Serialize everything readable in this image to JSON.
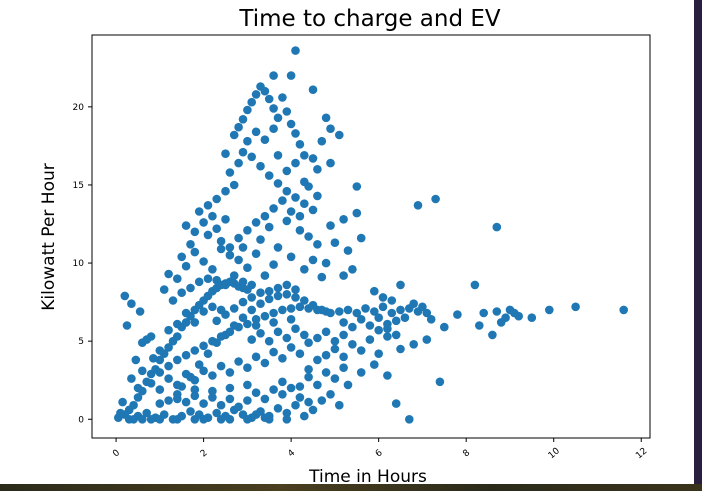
{
  "chart_data": {
    "type": "scatter",
    "title": "Time to charge and EV",
    "xlabel": "Time in Hours",
    "ylabel": "Kilowatt Per Hour",
    "xlim": [
      -0.55,
      12.2
    ],
    "ylim": [
      -1.2,
      24.6
    ],
    "xticks": [
      0,
      2,
      4,
      6,
      8,
      10,
      12
    ],
    "yticks": [
      0,
      5,
      10,
      15,
      20
    ],
    "grid": false,
    "color": "#1f77b4",
    "points": [
      [
        0.05,
        0.1
      ],
      [
        0.2,
        0.3
      ],
      [
        0.3,
        0.6
      ],
      [
        0.4,
        0.9
      ],
      [
        0.5,
        1.4
      ],
      [
        0.6,
        1.8
      ],
      [
        0.7,
        2.4
      ],
      [
        0.8,
        2.9
      ],
      [
        0.9,
        3.2
      ],
      [
        1.0,
        3.8
      ],
      [
        1.1,
        4.2
      ],
      [
        1.2,
        4.6
      ],
      [
        1.3,
        5.0
      ],
      [
        1.4,
        5.3
      ],
      [
        1.5,
        5.9
      ],
      [
        1.6,
        6.2
      ],
      [
        1.7,
        6.6
      ],
      [
        1.8,
        7.0
      ],
      [
        1.9,
        7.3
      ],
      [
        2.0,
        7.6
      ],
      [
        2.1,
        7.9
      ],
      [
        2.2,
        8.2
      ],
      [
        2.3,
        8.4
      ],
      [
        2.4,
        8.6
      ],
      [
        2.5,
        8.7
      ],
      [
        2.6,
        8.8
      ],
      [
        2.7,
        8.7
      ],
      [
        2.8,
        8.5
      ],
      [
        2.9,
        8.4
      ],
      [
        3.0,
        8.3
      ],
      [
        0.3,
        0.0
      ],
      [
        0.5,
        0.2
      ],
      [
        0.7,
        0.4
      ],
      [
        0.9,
        0.1
      ],
      [
        1.1,
        0.3
      ],
      [
        1.3,
        0.0
      ],
      [
        1.5,
        0.2
      ],
      [
        1.7,
        0.5
      ],
      [
        1.9,
        0.3
      ],
      [
        2.1,
        0.1
      ],
      [
        2.3,
        0.4
      ],
      [
        2.5,
        0.2
      ],
      [
        2.7,
        0.6
      ],
      [
        2.9,
        0.3
      ],
      [
        3.1,
        0.1
      ],
      [
        3.3,
        0.5
      ],
      [
        3.5,
        0.2
      ],
      [
        3.7,
        0.7
      ],
      [
        3.9,
        0.4
      ],
      [
        4.1,
        0.9
      ],
      [
        0.5,
        2.0
      ],
      [
        0.8,
        2.3
      ],
      [
        1.0,
        1.9
      ],
      [
        1.2,
        2.6
      ],
      [
        1.4,
        2.2
      ],
      [
        1.6,
        2.9
      ],
      [
        1.8,
        2.5
      ],
      [
        2.0,
        3.1
      ],
      [
        2.2,
        2.8
      ],
      [
        2.4,
        3.4
      ],
      [
        2.6,
        3.0
      ],
      [
        2.8,
        3.7
      ],
      [
        3.0,
        3.3
      ],
      [
        3.2,
        4.0
      ],
      [
        3.4,
        3.6
      ],
      [
        3.6,
        4.3
      ],
      [
        3.8,
        3.9
      ],
      [
        4.0,
        4.6
      ],
      [
        4.2,
        4.2
      ],
      [
        4.4,
        4.9
      ],
      [
        1.0,
        3.0
      ],
      [
        1.2,
        3.4
      ],
      [
        1.4,
        3.8
      ],
      [
        1.6,
        4.1
      ],
      [
        1.8,
        4.4
      ],
      [
        2.0,
        4.7
      ],
      [
        2.2,
        5.0
      ],
      [
        2.4,
        5.3
      ],
      [
        2.6,
        5.6
      ],
      [
        2.8,
        5.9
      ],
      [
        3.0,
        6.1
      ],
      [
        3.2,
        6.4
      ],
      [
        3.4,
        6.6
      ],
      [
        3.6,
        6.8
      ],
      [
        3.8,
        7.0
      ],
      [
        4.0,
        7.1
      ],
      [
        4.2,
        7.2
      ],
      [
        4.4,
        7.1
      ],
      [
        4.6,
        7.0
      ],
      [
        4.8,
        6.9
      ],
      [
        1.5,
        2.1
      ],
      [
        1.7,
        2.7
      ],
      [
        1.9,
        3.5
      ],
      [
        2.1,
        4.2
      ],
      [
        2.3,
        4.9
      ],
      [
        2.5,
        5.4
      ],
      [
        2.7,
        6.0
      ],
      [
        2.9,
        6.5
      ],
      [
        3.1,
        7.0
      ],
      [
        3.3,
        7.4
      ],
      [
        3.5,
        7.7
      ],
      [
        3.7,
        7.9
      ],
      [
        3.9,
        8.0
      ],
      [
        4.1,
        7.8
      ],
      [
        4.3,
        7.6
      ],
      [
        4.5,
        7.3
      ],
      [
        4.7,
        7.0
      ],
      [
        4.9,
        6.8
      ],
      [
        5.1,
        6.9
      ],
      [
        5.3,
        7.0
      ],
      [
        5.5,
        6.8
      ],
      [
        5.7,
        7.1
      ],
      [
        5.9,
        6.9
      ],
      [
        6.1,
        7.2
      ],
      [
        6.3,
        6.8
      ],
      [
        6.5,
        7.0
      ],
      [
        6.7,
        7.1
      ],
      [
        6.9,
        6.9
      ],
      [
        7.1,
        6.8
      ],
      [
        5.2,
        6.2
      ],
      [
        5.4,
        5.9
      ],
      [
        5.6,
        6.4
      ],
      [
        5.8,
        6.0
      ],
      [
        6.0,
        6.5
      ],
      [
        6.2,
        5.8
      ],
      [
        6.4,
        6.3
      ],
      [
        4.6,
        5.2
      ],
      [
        4.8,
        5.6
      ],
      [
        5.0,
        5.0
      ],
      [
        5.2,
        5.4
      ],
      [
        4.4,
        3.2
      ],
      [
        4.6,
        3.8
      ],
      [
        4.8,
        4.1
      ],
      [
        5.0,
        4.5
      ],
      [
        5.2,
        4.0
      ],
      [
        5.4,
        4.8
      ],
      [
        5.6,
        4.4
      ],
      [
        5.8,
        5.1
      ],
      [
        6.0,
        4.2
      ],
      [
        6.2,
        5.3
      ],
      [
        4.2,
        2.1
      ],
      [
        4.4,
        2.7
      ],
      [
        4.6,
        2.2
      ],
      [
        4.8,
        3.0
      ],
      [
        5.0,
        2.6
      ],
      [
        5.2,
        3.3
      ],
      [
        3.8,
        1.6
      ],
      [
        4.0,
        2.0
      ],
      [
        4.2,
        1.4
      ],
      [
        4.4,
        1.1
      ],
      [
        0.6,
        4.9
      ],
      [
        0.8,
        5.3
      ],
      [
        1.0,
        4.4
      ],
      [
        1.2,
        5.7
      ],
      [
        1.4,
        6.1
      ],
      [
        1.6,
        6.8
      ],
      [
        1.8,
        6.2
      ],
      [
        2.0,
        6.9
      ],
      [
        2.2,
        7.2
      ],
      [
        2.4,
        7.0
      ],
      [
        1.3,
        7.6
      ],
      [
        1.5,
        8.1
      ],
      [
        1.7,
        8.4
      ],
      [
        1.9,
        8.8
      ],
      [
        2.1,
        9.0
      ],
      [
        2.3,
        8.9
      ],
      [
        2.5,
        8.6
      ],
      [
        2.7,
        9.2
      ],
      [
        2.9,
        8.8
      ],
      [
        3.1,
        8.6
      ],
      [
        0.2,
        7.9
      ],
      [
        0.35,
        7.4
      ],
      [
        0.55,
        6.9
      ],
      [
        0.25,
        6.0
      ],
      [
        0.7,
        5.1
      ],
      [
        0.45,
        3.8
      ],
      [
        0.15,
        1.1
      ],
      [
        0.35,
        2.6
      ],
      [
        0.6,
        3.1
      ],
      [
        0.85,
        3.9
      ],
      [
        1.2,
        9.3
      ],
      [
        1.5,
        10.4
      ],
      [
        1.7,
        11.2
      ],
      [
        1.8,
        12.0
      ],
      [
        2.0,
        12.6
      ],
      [
        2.1,
        11.8
      ],
      [
        2.2,
        13.0
      ],
      [
        2.3,
        12.2
      ],
      [
        2.4,
        11.4
      ],
      [
        2.5,
        12.8
      ],
      [
        1.6,
        12.4
      ],
      [
        1.9,
        13.3
      ],
      [
        2.1,
        13.7
      ],
      [
        2.3,
        14.1
      ],
      [
        2.5,
        14.6
      ],
      [
        2.7,
        15.0
      ],
      [
        2.6,
        15.8
      ],
      [
        2.8,
        16.4
      ],
      [
        2.9,
        17.1
      ],
      [
        3.0,
        17.8
      ],
      [
        2.5,
        17.0
      ],
      [
        2.7,
        18.2
      ],
      [
        2.8,
        18.7
      ],
      [
        2.9,
        19.2
      ],
      [
        3.0,
        19.8
      ],
      [
        3.1,
        20.3
      ],
      [
        3.2,
        20.8
      ],
      [
        3.3,
        21.3
      ],
      [
        3.4,
        21.0
      ],
      [
        3.5,
        20.5
      ],
      [
        3.6,
        19.9
      ],
      [
        3.7,
        19.3
      ],
      [
        3.8,
        20.6
      ],
      [
        3.9,
        19.7
      ],
      [
        4.0,
        18.9
      ],
      [
        4.1,
        18.3
      ],
      [
        4.2,
        17.6
      ],
      [
        3.6,
        18.6
      ],
      [
        3.4,
        17.9
      ],
      [
        3.2,
        18.4
      ],
      [
        3.1,
        16.8
      ],
      [
        3.3,
        16.2
      ],
      [
        3.5,
        15.6
      ],
      [
        3.7,
        15.1
      ],
      [
        3.9,
        14.6
      ],
      [
        4.1,
        14.2
      ],
      [
        4.3,
        13.8
      ],
      [
        4.5,
        13.4
      ],
      [
        3.8,
        14.0
      ],
      [
        3.6,
        13.5
      ],
      [
        3.4,
        13.0
      ],
      [
        3.2,
        12.6
      ],
      [
        3.0,
        12.1
      ],
      [
        2.8,
        11.6
      ],
      [
        2.6,
        11.0
      ],
      [
        3.5,
        12.3
      ],
      [
        3.9,
        12.7
      ],
      [
        4.2,
        12.1
      ],
      [
        4.4,
        11.7
      ],
      [
        4.6,
        11.2
      ],
      [
        4.0,
        13.3
      ],
      [
        4.3,
        15.2
      ],
      [
        4.5,
        16.7
      ],
      [
        4.7,
        17.8
      ],
      [
        4.9,
        18.6
      ],
      [
        4.6,
        16.0
      ],
      [
        4.3,
        16.9
      ],
      [
        4.1,
        16.4
      ],
      [
        3.9,
        15.9
      ],
      [
        3.7,
        16.9
      ],
      [
        3.6,
        22.0
      ],
      [
        4.0,
        22.0
      ],
      [
        4.1,
        23.6
      ],
      [
        4.5,
        21.1
      ],
      [
        4.8,
        19.3
      ],
      [
        5.1,
        18.2
      ],
      [
        4.9,
        16.4
      ],
      [
        4.6,
        14.3
      ],
      [
        4.4,
        14.9
      ],
      [
        4.2,
        13.0
      ],
      [
        1.8,
        10.7
      ],
      [
        2.0,
        10.1
      ],
      [
        2.2,
        9.6
      ],
      [
        2.4,
        10.9
      ],
      [
        2.6,
        10.5
      ],
      [
        2.8,
        10.2
      ],
      [
        3.0,
        9.7
      ],
      [
        3.2,
        10.6
      ],
      [
        3.4,
        9.2
      ],
      [
        3.6,
        9.9
      ],
      [
        1.4,
        9.0
      ],
      [
        1.6,
        9.8
      ],
      [
        1.1,
        8.3
      ],
      [
        2.9,
        11.0
      ],
      [
        3.3,
        11.5
      ],
      [
        3.7,
        11.0
      ],
      [
        4.0,
        10.4
      ],
      [
        4.3,
        9.6
      ],
      [
        4.5,
        10.2
      ],
      [
        4.7,
        9.1
      ],
      [
        5.5,
        14.9
      ],
      [
        5.5,
        13.2
      ],
      [
        5.6,
        11.6
      ],
      [
        5.2,
        12.8
      ],
      [
        5.3,
        10.8
      ],
      [
        5.0,
        11.3
      ],
      [
        4.9,
        12.4
      ],
      [
        4.8,
        10.0
      ],
      [
        5.4,
        9.6
      ],
      [
        5.2,
        9.2
      ],
      [
        5.9,
        8.2
      ],
      [
        6.1,
        7.8
      ],
      [
        6.5,
        8.6
      ],
      [
        6.3,
        7.6
      ],
      [
        6.8,
        7.4
      ],
      [
        6.6,
        6.5
      ],
      [
        7.0,
        7.2
      ],
      [
        6.2,
        6.1
      ],
      [
        6.0,
        5.7
      ],
      [
        6.4,
        5.4
      ],
      [
        6.9,
        13.7
      ],
      [
        7.3,
        14.1
      ],
      [
        8.7,
        12.3
      ],
      [
        7.8,
        6.7
      ],
      [
        8.2,
        8.6
      ],
      [
        8.3,
        6.0
      ],
      [
        8.4,
        6.8
      ],
      [
        8.6,
        5.4
      ],
      [
        8.7,
        6.9
      ],
      [
        8.9,
        6.5
      ],
      [
        9.0,
        7.0
      ],
      [
        9.2,
        6.6
      ],
      [
        9.5,
        6.5
      ],
      [
        9.9,
        7.0
      ],
      [
        10.5,
        7.2
      ],
      [
        11.6,
        7.0
      ],
      [
        8.8,
        6.2
      ],
      [
        9.1,
        6.8
      ],
      [
        7.2,
        6.4
      ],
      [
        7.5,
        5.9
      ],
      [
        6.8,
        4.8
      ],
      [
        7.1,
        5.1
      ],
      [
        6.5,
        4.5
      ],
      [
        7.4,
        2.4
      ],
      [
        6.4,
        1.0
      ],
      [
        6.7,
        0.0
      ],
      [
        6.2,
        2.8
      ],
      [
        5.9,
        3.5
      ],
      [
        5.6,
        3.0
      ],
      [
        5.3,
        2.2
      ],
      [
        4.9,
        1.6
      ],
      [
        5.1,
        0.9
      ],
      [
        4.7,
        1.2
      ],
      [
        4.5,
        0.6
      ],
      [
        4.3,
        0.2
      ],
      [
        3.9,
        0.0
      ],
      [
        3.5,
        0.0
      ],
      [
        3.2,
        0.3
      ],
      [
        2.4,
        0.0
      ],
      [
        1.8,
        0.0
      ],
      [
        1.2,
        1.2
      ],
      [
        1.4,
        1.6
      ],
      [
        1.6,
        1.1
      ],
      [
        1.8,
        1.5
      ],
      [
        2.0,
        1.0
      ],
      [
        2.2,
        1.4
      ],
      [
        2.4,
        0.9
      ],
      [
        2.6,
        1.3
      ],
      [
        2.8,
        0.8
      ],
      [
        3.0,
        1.2
      ],
      [
        3.2,
        1.7
      ],
      [
        3.4,
        1.3
      ],
      [
        3.6,
        1.9
      ],
      [
        3.8,
        2.4
      ],
      [
        3.0,
        2.2
      ],
      [
        2.6,
        2.0
      ],
      [
        2.2,
        1.8
      ],
      [
        1.8,
        1.9
      ],
      [
        1.4,
        1.3
      ],
      [
        1.0,
        1.0
      ],
      [
        0.4,
        0.0
      ],
      [
        0.6,
        0.0
      ],
      [
        0.8,
        0.0
      ],
      [
        1.0,
        0.0
      ],
      [
        1.4,
        0.0
      ],
      [
        2.0,
        0.0
      ],
      [
        2.6,
        0.0
      ],
      [
        3.0,
        0.0
      ],
      [
        3.4,
        0.1
      ],
      [
        0.1,
        0.4
      ],
      [
        3.1,
        5.1
      ],
      [
        3.3,
        5.5
      ],
      [
        3.5,
        5.0
      ],
      [
        3.7,
        5.6
      ],
      [
        3.9,
        5.2
      ],
      [
        4.1,
        5.8
      ],
      [
        4.3,
        5.4
      ],
      [
        3.2,
        6.0
      ],
      [
        3.6,
        6.2
      ],
      [
        4.0,
        6.4
      ],
      [
        2.3,
        6.3
      ],
      [
        2.5,
        6.7
      ],
      [
        2.7,
        7.1
      ],
      [
        2.9,
        7.5
      ],
      [
        3.1,
        7.8
      ],
      [
        3.3,
        8.1
      ],
      [
        3.5,
        8.2
      ],
      [
        3.7,
        8.4
      ],
      [
        3.9,
        8.6
      ],
      [
        4.1,
        8.3
      ]
    ]
  }
}
